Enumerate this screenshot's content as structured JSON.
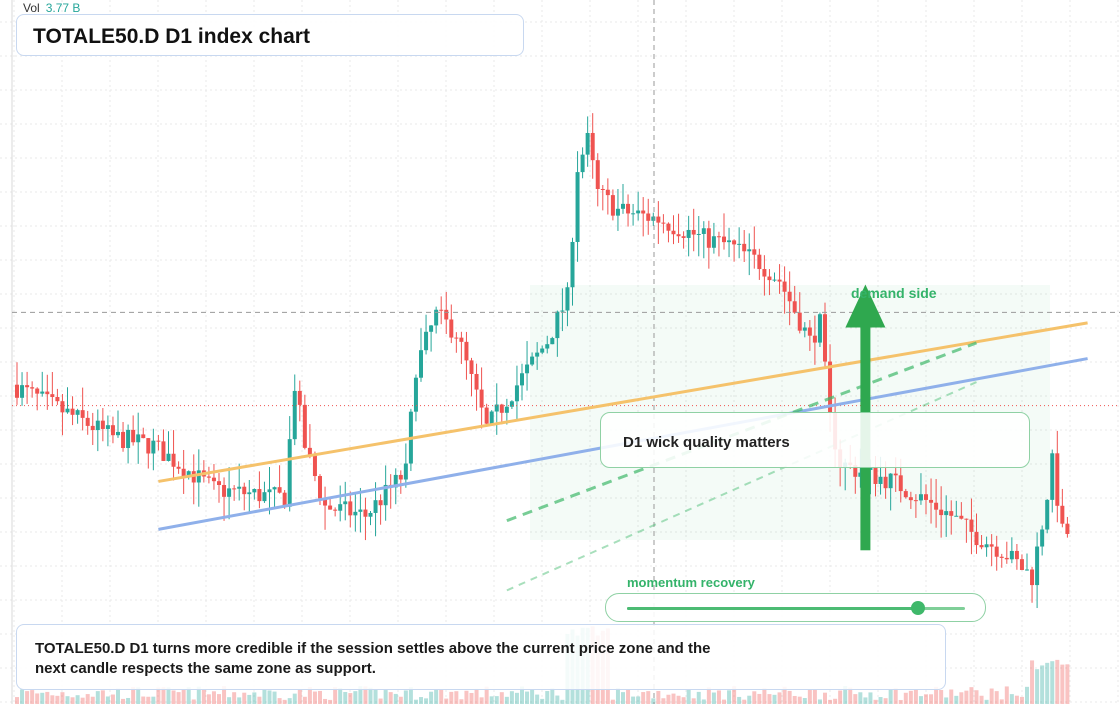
{
  "header": {
    "vol_label": "Vol",
    "vol_value": "3.77 B",
    "title": "TOTALE50.D D1 index chart"
  },
  "annotations": {
    "callout": "D1 wick quality matters",
    "zone_label": "demand side",
    "momentum_label": "momentum recovery",
    "momentum_level": 0.86,
    "note": "TOTALE50.D D1 turns more credible if the session settles above the current price zone and the next candle respects the same zone as support."
  },
  "colors": {
    "up": "#26a69a",
    "down": "#ef5350",
    "accent_green": "#2fa84f",
    "trend_orange": "#f5c26b",
    "trend_blue": "#8fb0ea"
  },
  "chart_data": {
    "type": "candlestick",
    "timeframe": "D1",
    "symbol": "TOTALE50.D",
    "y_range": [
      70,
      140
    ],
    "bars": 209,
    "grid": true,
    "legend": "none",
    "price_level": 105.3,
    "price_line": 94.6,
    "trend_orange": {
      "from": [
        28,
        85.9
      ],
      "to": [
        212,
        104.1
      ]
    },
    "trend_blue": {
      "from": [
        28,
        80.4
      ],
      "to": [
        212,
        100.0
      ]
    },
    "dashed_upper": {
      "from": [
        97,
        81.4
      ],
      "to": [
        190,
        101.8
      ]
    },
    "dashed_lower": {
      "from": [
        97,
        73.4
      ],
      "to": [
        190,
        97.3
      ]
    },
    "demand_arrow": {
      "from_bar": 168,
      "from_y": 78.0,
      "to_y": 108.5
    }
  }
}
